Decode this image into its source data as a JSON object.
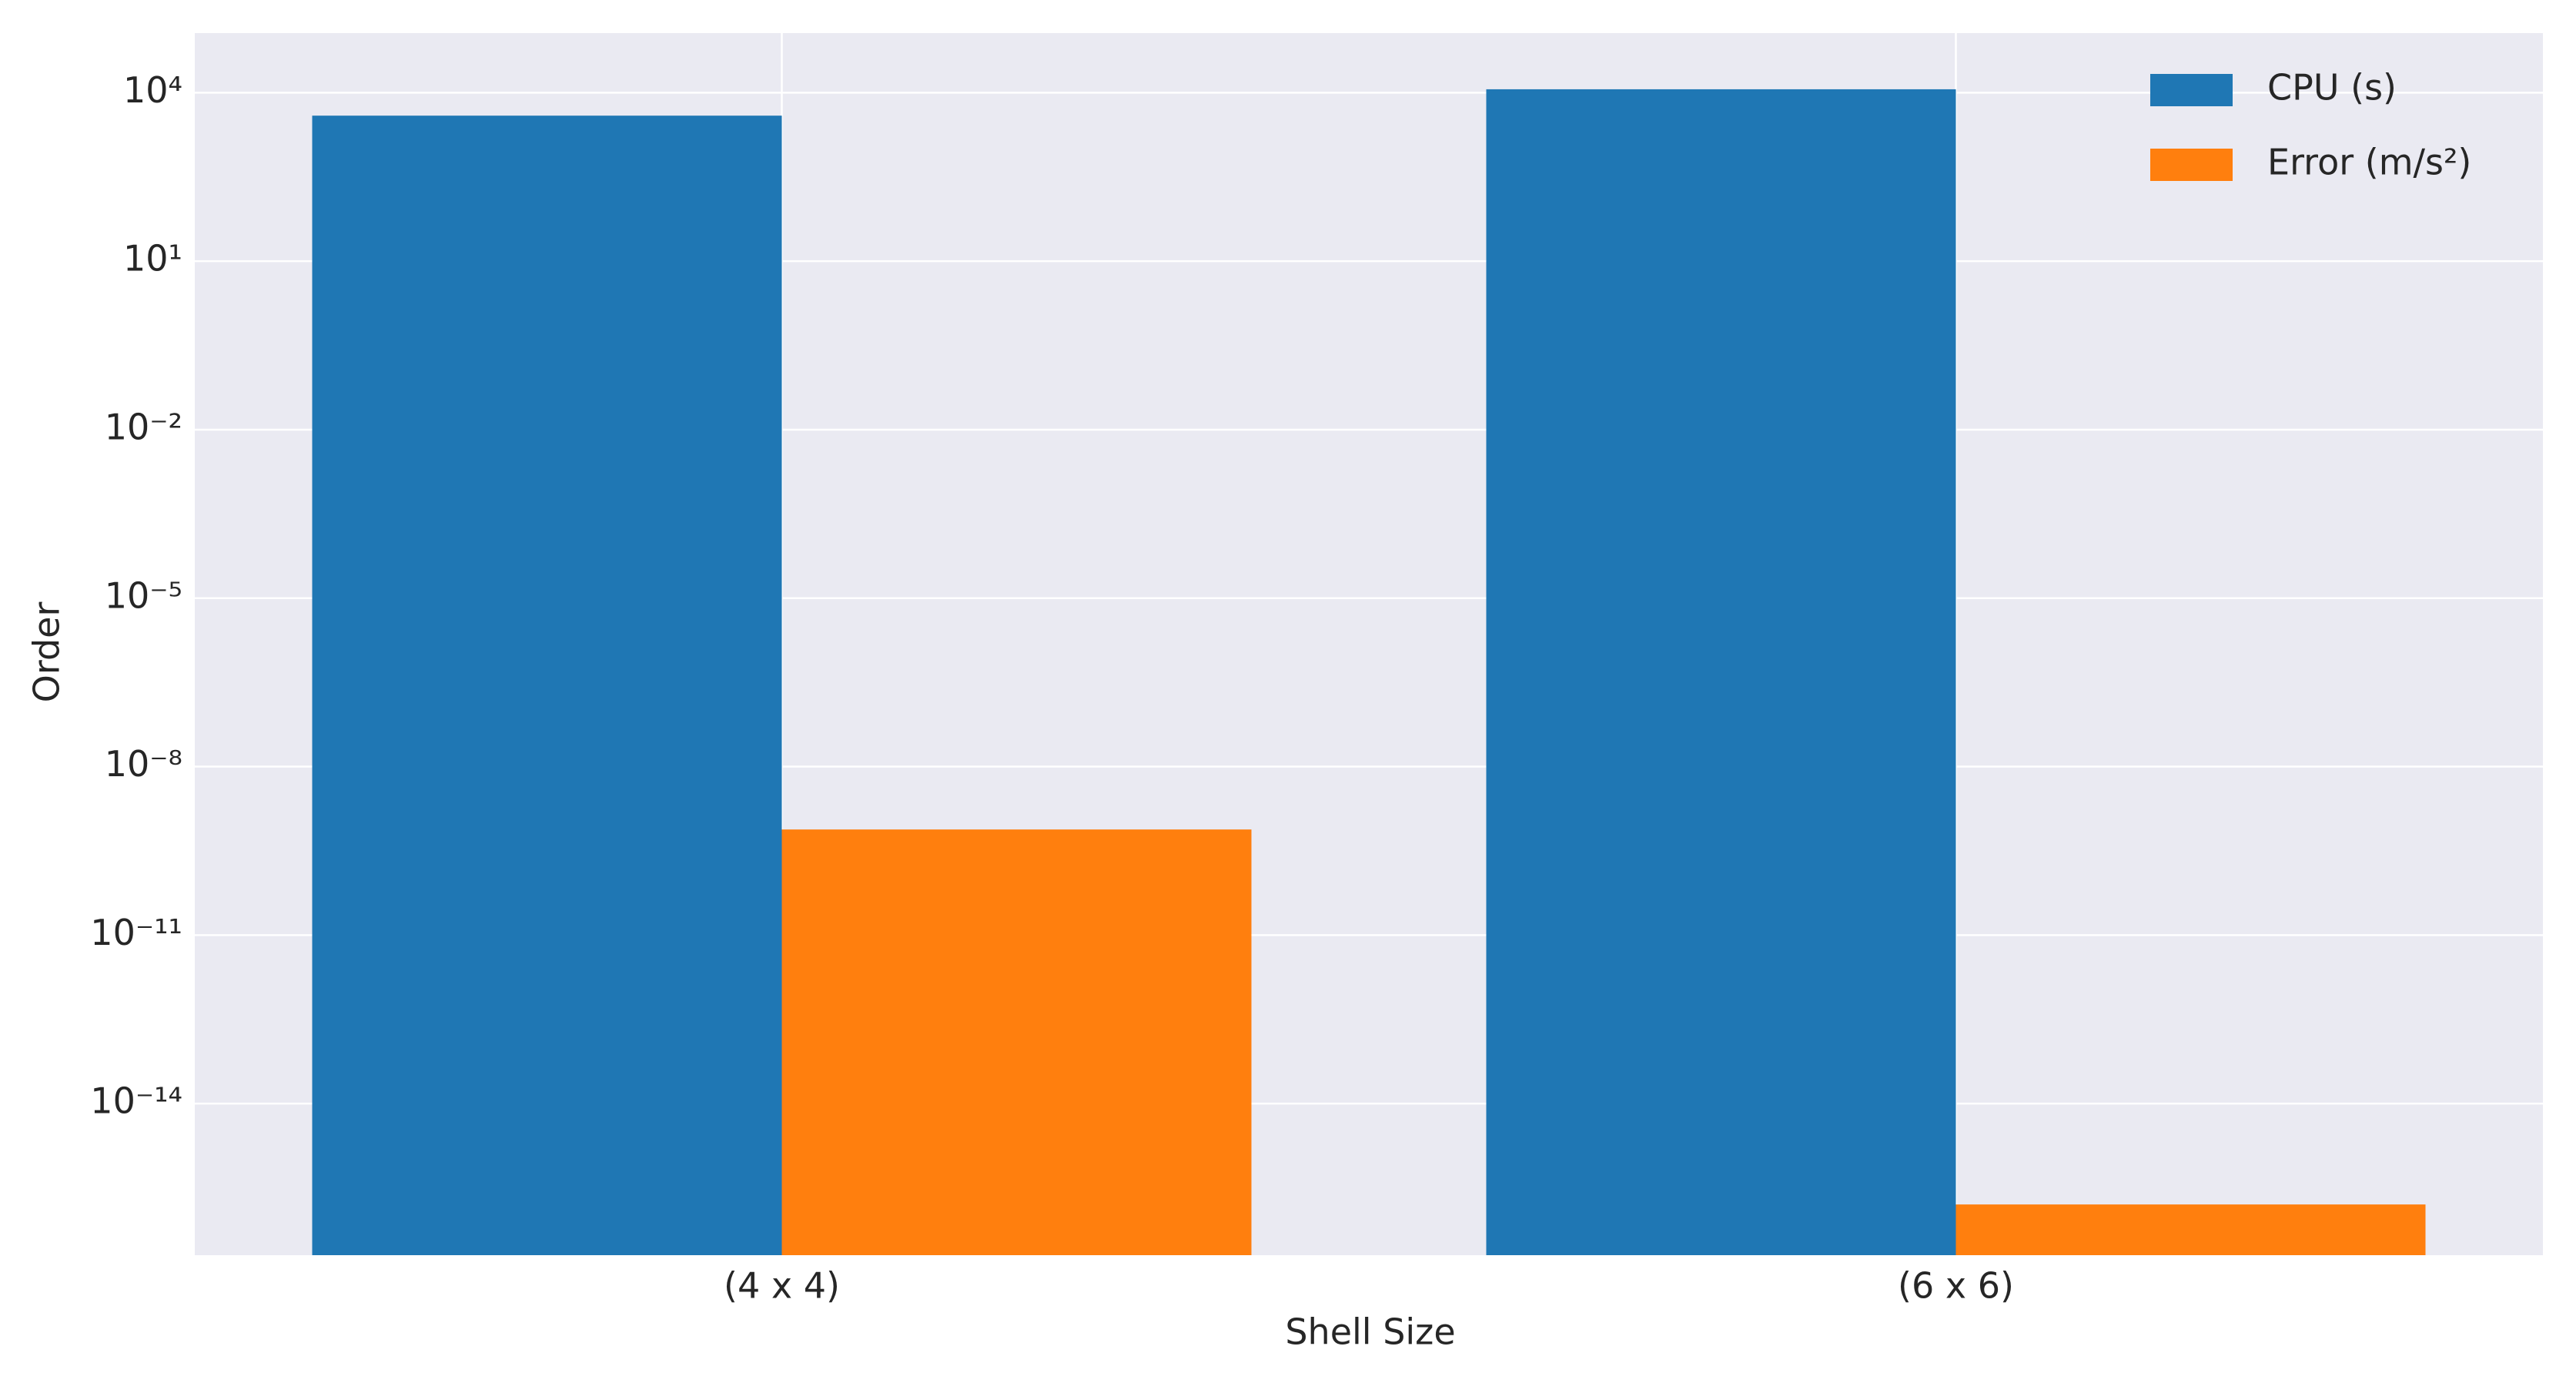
{
  "chart_data": {
    "type": "bar",
    "yscale": "log",
    "xlabel": "Shell Size",
    "ylabel": "Order",
    "categories": [
      "(4 x 4)",
      "(6 x 6)"
    ],
    "series": [
      {
        "name": "CPU (s)",
        "color": "#1f77b4",
        "values": [
          3900,
          11500
        ]
      },
      {
        "name": "Error (m/s²)",
        "color": "#ff7f0e",
        "values": [
          7.6e-10,
          1.6e-16
        ]
      }
    ],
    "ylim": [
      2e-17,
      115000
    ],
    "yticks": [
      {
        "value": 1e-14,
        "label": "10⁻¹⁴"
      },
      {
        "value": 1e-11,
        "label": "10⁻¹¹"
      },
      {
        "value": 1e-08,
        "label": "10⁻⁸"
      },
      {
        "value": 1e-05,
        "label": "10⁻⁵"
      },
      {
        "value": 0.01,
        "label": "10⁻²"
      },
      {
        "value": 10,
        "label": "10¹"
      },
      {
        "value": 10000,
        "label": "10⁴"
      }
    ],
    "grid": true,
    "legend": "upper right"
  }
}
